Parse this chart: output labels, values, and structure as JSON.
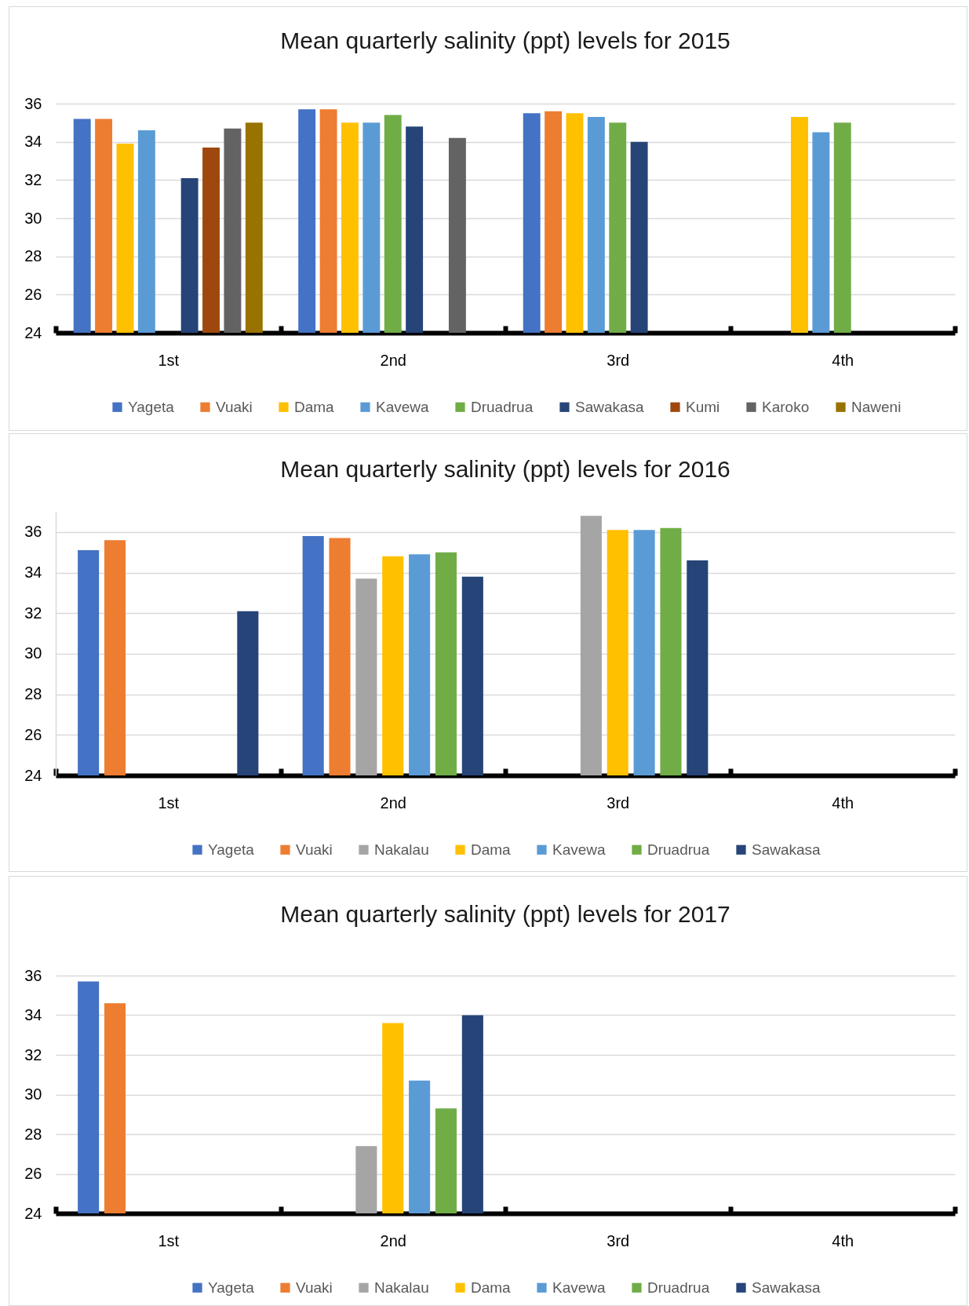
{
  "chart_data": [
    {
      "type": "bar",
      "title": "Mean quarterly salinity (ppt) levels for 2015",
      "categories": [
        "1st",
        "2nd",
        "3rd",
        "4th"
      ],
      "series": [
        {
          "name": "Yageta",
          "color": "#4472c4",
          "values": [
            35.2,
            35.7,
            35.5,
            null
          ]
        },
        {
          "name": "Vuaki",
          "color": "#ed7d31",
          "values": [
            35.2,
            35.7,
            35.6,
            null
          ]
        },
        {
          "name": "Dama",
          "color": "#ffc000",
          "values": [
            33.9,
            35.0,
            35.5,
            35.3
          ]
        },
        {
          "name": "Kavewa",
          "color": "#5b9bd5",
          "values": [
            34.6,
            35.0,
            35.3,
            34.5
          ]
        },
        {
          "name": "Druadrua",
          "color": "#70ad47",
          "values": [
            null,
            35.4,
            35.0,
            35.0
          ]
        },
        {
          "name": "Sawakasa",
          "color": "#264478",
          "values": [
            32.1,
            34.8,
            34.0,
            null
          ]
        },
        {
          "name": "Kumi",
          "color": "#9e480e",
          "values": [
            33.7,
            null,
            null,
            null
          ]
        },
        {
          "name": "Karoko",
          "color": "#636363",
          "values": [
            34.7,
            34.2,
            null,
            null
          ]
        },
        {
          "name": "Naweni",
          "color": "#997300",
          "values": [
            35.0,
            null,
            null,
            null
          ]
        }
      ],
      "ylim": [
        24,
        36
      ],
      "yticks": [
        24,
        26,
        28,
        30,
        32,
        34,
        36
      ],
      "grid": "y",
      "legend": "bottom"
    },
    {
      "type": "bar",
      "title": "Mean quarterly salinity (ppt) levels for 2016",
      "categories": [
        "1st",
        "2nd",
        "3rd",
        "4th"
      ],
      "series": [
        {
          "name": "Yageta",
          "color": "#4472c4",
          "values": [
            35.1,
            35.8,
            null,
            null
          ]
        },
        {
          "name": "Vuaki",
          "color": "#ed7d31",
          "values": [
            35.6,
            35.7,
            null,
            null
          ]
        },
        {
          "name": "Nakalau",
          "color": "#a5a5a5",
          "values": [
            null,
            33.7,
            36.8,
            null
          ]
        },
        {
          "name": "Dama",
          "color": "#ffc000",
          "values": [
            null,
            34.8,
            36.1,
            null
          ]
        },
        {
          "name": "Kavewa",
          "color": "#5b9bd5",
          "values": [
            null,
            34.9,
            36.1,
            null
          ]
        },
        {
          "name": "Druadrua",
          "color": "#70ad47",
          "values": [
            null,
            35.0,
            36.2,
            null
          ]
        },
        {
          "name": "Sawakasa",
          "color": "#264478",
          "values": [
            32.1,
            33.8,
            34.6,
            null
          ]
        }
      ],
      "ylim": [
        24,
        37
      ],
      "yticks": [
        24,
        26,
        28,
        30,
        32,
        34,
        36
      ],
      "grid": "y",
      "legend": "bottom"
    },
    {
      "type": "bar",
      "title": "Mean quarterly salinity (ppt) levels for 2017",
      "categories": [
        "1st",
        "2nd",
        "3rd",
        "4th"
      ],
      "series": [
        {
          "name": "Yageta",
          "color": "#4472c4",
          "values": [
            35.7,
            null,
            null,
            null
          ]
        },
        {
          "name": "Vuaki",
          "color": "#ed7d31",
          "values": [
            34.6,
            null,
            null,
            null
          ]
        },
        {
          "name": "Nakalau",
          "color": "#a5a5a5",
          "values": [
            null,
            27.4,
            null,
            null
          ]
        },
        {
          "name": "Dama",
          "color": "#ffc000",
          "values": [
            null,
            33.6,
            null,
            null
          ]
        },
        {
          "name": "Kavewa",
          "color": "#5b9bd5",
          "values": [
            null,
            30.7,
            null,
            null
          ]
        },
        {
          "name": "Druadrua",
          "color": "#70ad47",
          "values": [
            null,
            29.3,
            null,
            null
          ]
        },
        {
          "name": "Sawakasa",
          "color": "#264478",
          "values": [
            null,
            34.0,
            null,
            null
          ]
        }
      ],
      "ylim": [
        24,
        36
      ],
      "yticks": [
        24,
        26,
        28,
        30,
        32,
        34,
        36
      ],
      "grid": "y",
      "legend": "bottom"
    }
  ]
}
